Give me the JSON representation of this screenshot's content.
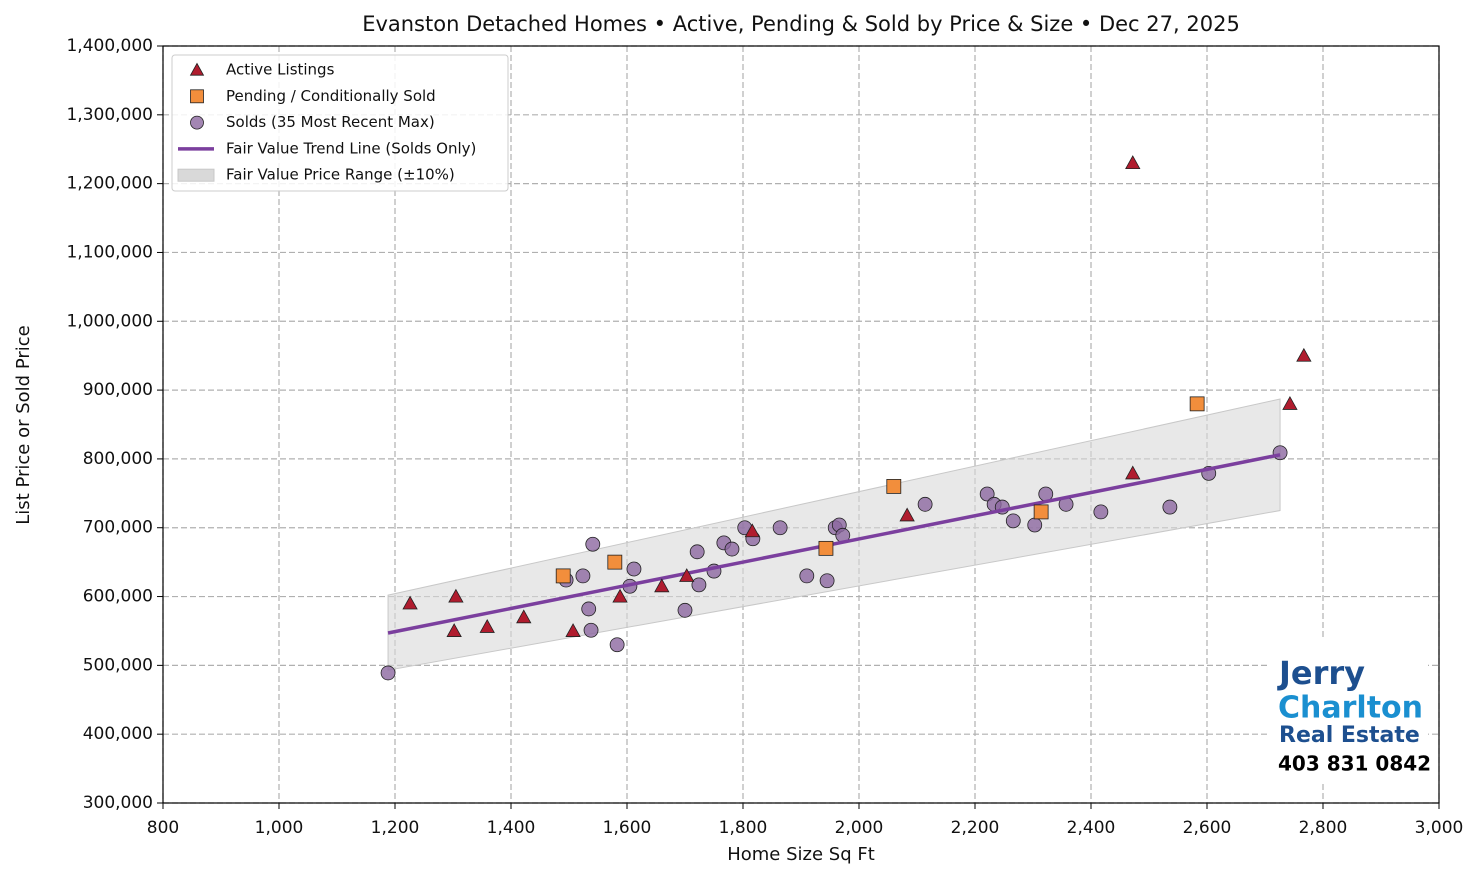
{
  "chart_data": {
    "type": "scatter",
    "title": "Evanston Detached Homes • Active, Pending & Sold by Price & Size • Dec 27, 2025",
    "x_label": "Home Size Sq Ft",
    "y_label": "List Price or Sold Price",
    "xlim": [
      800,
      3000
    ],
    "ylim": [
      300000,
      1400000
    ],
    "xticks": [
      800,
      {
        "value": 1000,
        "label": "1,000"
      },
      {
        "value": 1200,
        "label": "1,200"
      },
      {
        "value": 1400,
        "label": "1,400"
      },
      {
        "value": 1600,
        "label": "1,600"
      },
      {
        "value": 1800,
        "label": "1,800"
      },
      {
        "value": 2000,
        "label": "2,000"
      },
      {
        "value": 2200,
        "label": "2,200"
      },
      {
        "value": 2400,
        "label": "2,400"
      },
      {
        "value": 2600,
        "label": "2,600"
      },
      {
        "value": 2800,
        "label": "2,800"
      },
      {
        "value": 3000,
        "label": "3,000"
      }
    ],
    "yticks": [
      {
        "value": 300000,
        "label": "300,000"
      },
      {
        "value": 400000,
        "label": "400,000"
      },
      {
        "value": 500000,
        "label": "500,000"
      },
      {
        "value": 600000,
        "label": "600,000"
      },
      {
        "value": 700000,
        "label": "700,000"
      },
      {
        "value": 800000,
        "label": "800,000"
      },
      {
        "value": 900000,
        "label": "900,000"
      },
      {
        "value": 1000000,
        "label": "1,000,000"
      },
      {
        "value": 1100000,
        "label": "1,100,000"
      },
      {
        "value": 1200000,
        "label": "1,200,000"
      },
      {
        "value": 1300000,
        "label": "1,300,000"
      },
      {
        "value": 1400000,
        "label": "1,400,000"
      }
    ],
    "grid": true,
    "legend": "upper left",
    "series": [
      {
        "name": "Active Listings",
        "color": "#b01c2e",
        "marker": "triangle",
        "x": [
          1226,
          1305,
          1302,
          1359,
          1422,
          1507,
          1588,
          1660,
          1703,
          1816,
          2083,
          2472,
          2472,
          2743,
          2767
        ],
        "values": [
          590000,
          600000,
          550000,
          556000,
          570000,
          550000,
          600000,
          615000,
          630000,
          695000,
          718000,
          1230000,
          779000,
          880000,
          950000
        ]
      },
      {
        "name": "Pending / Conditionally Sold",
        "color": "#f28e3c",
        "marker": "square",
        "x": [
          1490,
          1579,
          1943,
          2060,
          2314,
          2583
        ],
        "values": [
          630000,
          650000,
          670000,
          760000,
          723000,
          880000
        ]
      },
      {
        "name": "Solds (35 Most Recent Max)",
        "color": "#8c68a0",
        "marker": "circle",
        "x": [
          1188,
          1495,
          1524,
          1541,
          1534,
          1538,
          1583,
          1605,
          1612,
          1700,
          1721,
          1724,
          1750,
          1767,
          1781,
          1803,
          1817,
          1864,
          1910,
          1945,
          1959,
          1966,
          1972,
          2114,
          2221,
          2233,
          2247,
          2266,
          2303,
          2322,
          2357,
          2417,
          2536,
          2603,
          2726
        ],
        "values": [
          489000,
          624000,
          630000,
          676000,
          582000,
          551000,
          530000,
          615000,
          640000,
          580000,
          665000,
          617000,
          637000,
          678000,
          669000,
          700000,
          684000,
          700000,
          630000,
          623000,
          700000,
          704000,
          689000,
          734000,
          749000,
          734000,
          730000,
          710000,
          704000,
          749000,
          734000,
          723000,
          730000,
          779000,
          809000
        ]
      }
    ],
    "trend": {
      "name": "Fair Value Trend Line (Solds Only)",
      "color": "#7b3f9e",
      "x": [
        1188,
        2726
      ],
      "values": [
        547000,
        806000
      ]
    },
    "band": {
      "name": "Fair Value Price Range (±10%)",
      "color": "#d9d9d9",
      "x": [
        1188,
        2726
      ],
      "upper": [
        602000,
        887000
      ],
      "lower": [
        493000,
        725000
      ]
    }
  },
  "logo": {
    "line1": "Jerry",
    "line2": "Charlton",
    "line3": "Real Estate",
    "phone": "403 831 0842"
  }
}
